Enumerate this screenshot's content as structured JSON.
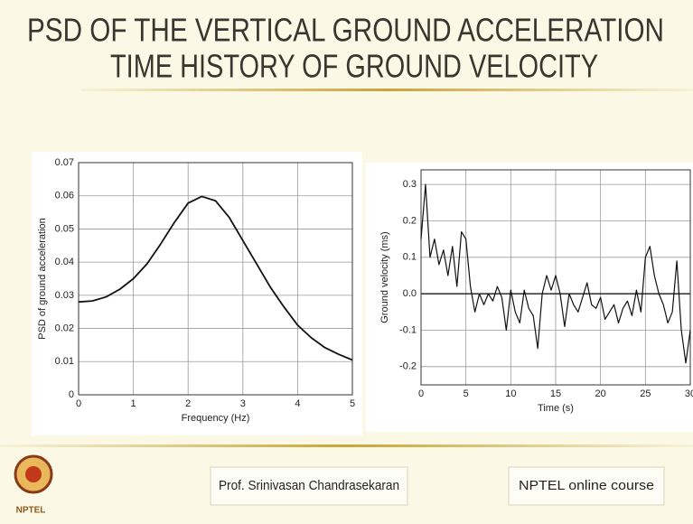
{
  "slide": {
    "title_lines": [
      "PSD OF THE VERTICAL GROUND ACCELERATION",
      "TIME HISTORY OF GROUND VELOCITY"
    ],
    "logo_text": "NPTEL",
    "presenter": "Prof. Srinivasan Chandrasekaran",
    "course": "NPTEL online course"
  },
  "chart_data": [
    {
      "type": "line",
      "x_label": "Frequency (Hz)",
      "y_label": "PSD of ground acceleration",
      "x": [
        0,
        0.25,
        0.5,
        0.75,
        1,
        1.25,
        1.5,
        1.75,
        2,
        2.25,
        2.5,
        2.75,
        3,
        3.25,
        3.5,
        3.75,
        4,
        4.25,
        4.5,
        4.75,
        5
      ],
      "series": [
        {
          "color": "#111111",
          "values": [
            0.028,
            0.0283,
            0.0295,
            0.0318,
            0.035,
            0.0395,
            0.0455,
            0.052,
            0.0578,
            0.0598,
            0.0585,
            0.0535,
            0.0465,
            0.0395,
            0.0325,
            0.0265,
            0.021,
            0.0172,
            0.0142,
            0.0122,
            0.0105
          ]
        }
      ],
      "xlim": [
        0,
        5
      ],
      "xticks": [
        0,
        1,
        2,
        3,
        4,
        5
      ],
      "ylim": [
        0,
        0.07
      ],
      "yticks": [
        0,
        0.01,
        0.02,
        0.03,
        0.04,
        0.05,
        0.06,
        0.07
      ],
      "grid": true
    },
    {
      "type": "line",
      "x_label": "Time (s)",
      "y_label": "Ground velocity (ms)",
      "x": [
        0,
        0.5,
        1,
        1.5,
        2,
        2.5,
        3,
        3.5,
        4,
        4.5,
        5,
        5.5,
        6,
        6.5,
        7,
        7.5,
        8,
        8.5,
        9,
        9.5,
        10,
        10.5,
        11,
        11.5,
        12,
        12.5,
        13,
        13.5,
        14,
        14.5,
        15,
        15.5,
        16,
        16.5,
        17,
        17.5,
        18,
        18.5,
        19,
        19.5,
        20,
        20.5,
        21,
        21.5,
        22,
        22.5,
        23,
        23.5,
        24,
        24.5,
        25,
        25.5,
        26,
        26.5,
        27,
        27.5,
        28,
        28.5,
        29,
        29.5,
        30
      ],
      "series": [
        {
          "color": "#111111",
          "values": [
            0.15,
            0.3,
            0.1,
            0.15,
            0.08,
            0.12,
            0.05,
            0.13,
            0.02,
            0.17,
            0.15,
            0.02,
            -0.05,
            0.0,
            -0.03,
            0.0,
            -0.02,
            0.02,
            -0.01,
            -0.1,
            0.01,
            -0.05,
            -0.08,
            0.01,
            -0.04,
            -0.06,
            -0.15,
            0.0,
            0.05,
            0.01,
            0.05,
            0.0,
            -0.09,
            0.0,
            -0.03,
            -0.05,
            -0.01,
            0.03,
            -0.03,
            -0.04,
            -0.01,
            -0.07,
            -0.05,
            -0.03,
            -0.08,
            -0.04,
            -0.02,
            -0.06,
            0.01,
            -0.05,
            0.1,
            0.13,
            0.05,
            0.0,
            -0.03,
            -0.08,
            -0.05,
            0.09,
            -0.1,
            -0.19,
            -0.1
          ]
        }
      ],
      "xlim": [
        0,
        30
      ],
      "xticks": [
        0,
        5,
        10,
        15,
        20,
        25,
        30
      ],
      "ylim": [
        -0.25,
        0.34
      ],
      "yticks": [
        -0.2,
        -0.1,
        {
          "value": 0,
          "label": "0.0"
        },
        0.1,
        0.2,
        0.3
      ],
      "grid": true,
      "zero_line": true
    }
  ]
}
